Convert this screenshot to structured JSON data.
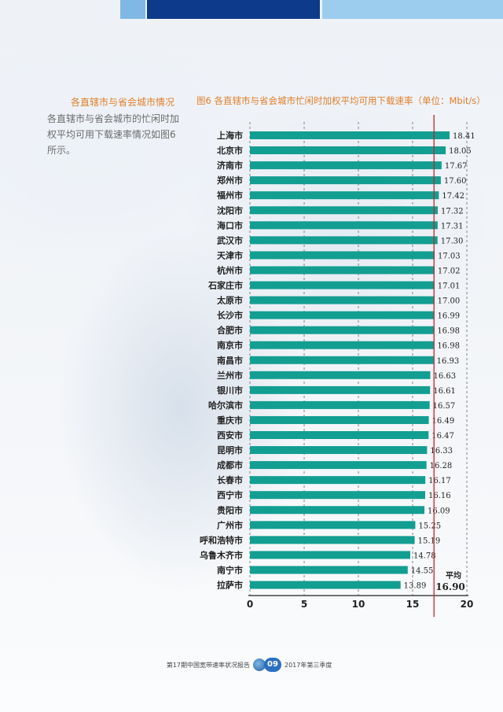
{
  "side": {
    "title": "各直辖市与省会城市情况",
    "text": "各直辖市与省会城市的忙闲时加权平均可用下载速率情况如图6所示。"
  },
  "footer": {
    "left": "第17期中国宽带速率状况报告",
    "page": "09",
    "right": "2017年第三季度"
  },
  "colors": {
    "bar": "#139e92",
    "avg_line": "#cc2229",
    "title": "#e07f2a"
  },
  "chart_data": {
    "type": "bar",
    "orientation": "horizontal",
    "title": "图6 各直辖市与省会城市忙闲时加权平均可用下载速率（单位：Mbit/s）",
    "categories": [
      "上海市",
      "北京市",
      "济南市",
      "郑州市",
      "福州市",
      "沈阳市",
      "海口市",
      "武汉市",
      "天津市",
      "杭州市",
      "石家庄市",
      "太原市",
      "长沙市",
      "合肥市",
      "南京市",
      "南昌市",
      "兰州市",
      "银川市",
      "哈尔滨市",
      "重庆市",
      "西安市",
      "昆明市",
      "成都市",
      "长春市",
      "西宁市",
      "贵阳市",
      "广州市",
      "呼和浩特市",
      "乌鲁木齐市",
      "南宁市",
      "拉萨市"
    ],
    "values": [
      18.41,
      18.05,
      17.67,
      17.6,
      17.42,
      17.32,
      17.31,
      17.3,
      17.03,
      17.02,
      17.01,
      17.0,
      16.99,
      16.98,
      16.98,
      16.93,
      16.63,
      16.61,
      16.57,
      16.49,
      16.47,
      16.33,
      16.28,
      16.17,
      16.16,
      16.09,
      15.25,
      15.19,
      14.78,
      14.55,
      13.89
    ],
    "value_labels": [
      "18.41",
      "18.05",
      "17.67",
      "17.60",
      "17.42",
      "17.32",
      "17.31",
      "17.30",
      "17.03",
      "17.02",
      "17.01",
      "17.00",
      "16.99",
      "16.98",
      "16.98",
      "16.93",
      "16.63",
      "16.61",
      "16.57",
      "16.49",
      "16.47",
      "16.33",
      "16.28",
      "16.17",
      "16.16",
      "16.09",
      "15.25",
      "15.19",
      "14.78",
      "14.55",
      "13.89"
    ],
    "xlim": [
      0,
      20
    ],
    "xticks": [
      "0",
      "5",
      "10",
      "15",
      "20"
    ],
    "grid": "vertical dashed",
    "average": {
      "value": 16.9,
      "label": "平均",
      "value_label": "16.90"
    }
  }
}
